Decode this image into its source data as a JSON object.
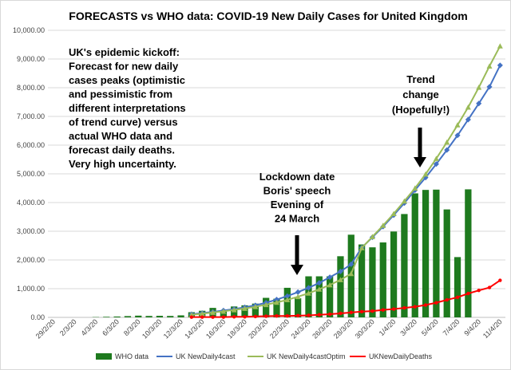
{
  "chart_data": {
    "type": "bar",
    "title": "FORECASTS vs WHO data: COVID-19 New Daily Cases for United Kingdom",
    "ylim": [
      0,
      10000
    ],
    "y_ticks": [
      "0.00",
      "1,000.00",
      "2,000.00",
      "3,000.00",
      "4,000.00",
      "5,000.00",
      "6,000.00",
      "7,000.00",
      "8,000.00",
      "9,000.00",
      "10,000.00"
    ],
    "categories": [
      "29/2/20",
      "1/3/20",
      "2/3/20",
      "3/3/20",
      "4/3/20",
      "5/3/20",
      "6/3/20",
      "7/3/20",
      "8/3/20",
      "9/3/20",
      "10/3/20",
      "11/3/20",
      "12/3/20",
      "13/3/20",
      "14/3/20",
      "15/3/20",
      "16/3/20",
      "17/3/20",
      "18/3/20",
      "19/3/20",
      "20/3/20",
      "21/3/20",
      "22/3/20",
      "23/3/20",
      "24/3/20",
      "25/3/20",
      "26/3/20",
      "27/3/20",
      "28/3/20",
      "29/3/20",
      "30/3/20",
      "31/3/20",
      "1/4/20",
      "2/4/20",
      "3/4/20",
      "4/4/20",
      "5/4/20",
      "6/4/20",
      "7/4/20",
      "8/4/20",
      "9/4/20",
      "10/4/20",
      "11/4/20"
    ],
    "x_tick_labels": [
      "29/2/20",
      "2/3/20",
      "4/3/20",
      "6/3/20",
      "8/3/20",
      "10/3/20",
      "12/3/20",
      "14/3/20",
      "16/3/20",
      "18/3/20",
      "20/3/20",
      "22/3/20",
      "24/3/20",
      "26/3/20",
      "28/3/20",
      "30/3/20",
      "1/4/20",
      "3/4/20",
      "5/4/20",
      "7/4/20",
      "9/4/20",
      "11/4/20"
    ],
    "series": [
      {
        "name": "WHO data",
        "kind": "bar",
        "color": "#1e7a1e",
        "values": [
          0,
          0,
          0,
          0,
          10,
          20,
          30,
          45,
          60,
          50,
          55,
          50,
          70,
          180,
          230,
          330,
          250,
          380,
          420,
          480,
          680,
          650,
          1030,
          670,
          1430,
          1430,
          1430,
          2130,
          2880,
          2540,
          2440,
          2610,
          2990,
          3600,
          4320,
          4440,
          4450,
          3760,
          2100,
          4460,
          null,
          null,
          null
        ]
      },
      {
        "name": "UK NewDaily4cast",
        "kind": "line",
        "color": "#4472c4",
        "values": [
          null,
          null,
          null,
          null,
          null,
          null,
          null,
          null,
          null,
          null,
          null,
          null,
          null,
          110,
          150,
          190,
          240,
          290,
          350,
          420,
          510,
          620,
          740,
          880,
          1030,
          1200,
          1400,
          1600,
          1850,
          2430,
          2790,
          3160,
          3560,
          3980,
          4430,
          4870,
          5340,
          5830,
          6340,
          6890,
          7450,
          8030,
          8780
        ]
      },
      {
        "name": "UK NewDaily4castOptim",
        "kind": "line",
        "color": "#9bbb59",
        "values": [
          null,
          null,
          null,
          null,
          null,
          null,
          null,
          null,
          null,
          null,
          null,
          null,
          null,
          90,
          130,
          170,
          210,
          260,
          310,
          370,
          440,
          520,
          610,
          720,
          840,
          980,
          1130,
          1310,
          1520,
          2420,
          2810,
          3200,
          3610,
          4050,
          4500,
          4990,
          5530,
          6100,
          6700,
          7320,
          8010,
          8750,
          9450
        ]
      },
      {
        "name": "UKNewDailyDeaths",
        "kind": "line",
        "color": "#ff0000",
        "values": [
          null,
          null,
          null,
          null,
          null,
          null,
          null,
          null,
          null,
          null,
          null,
          null,
          null,
          10,
          10,
          10,
          10,
          20,
          20,
          30,
          40,
          50,
          50,
          60,
          70,
          90,
          110,
          140,
          170,
          200,
          220,
          260,
          290,
          330,
          370,
          430,
          510,
          610,
          700,
          830,
          940,
          1040,
          1290
        ]
      }
    ],
    "annotations": {
      "forecast_note": [
        "UK's epidemic kickoff:",
        "Forecast for new daily",
        "cases peaks (optimistic",
        "and pessimistic  from",
        "different interpretations",
        "of trend curve) versus",
        "actual WHO data and",
        "forecast daily deaths.",
        "Very high uncertainty."
      ],
      "lockdown_note": [
        "Lockdown date",
        "Boris' speech",
        "Evening of",
        "24 March"
      ],
      "trend_note": [
        "Trend",
        "change",
        "(Hopefully!)"
      ]
    },
    "legend_position": "bottom"
  }
}
